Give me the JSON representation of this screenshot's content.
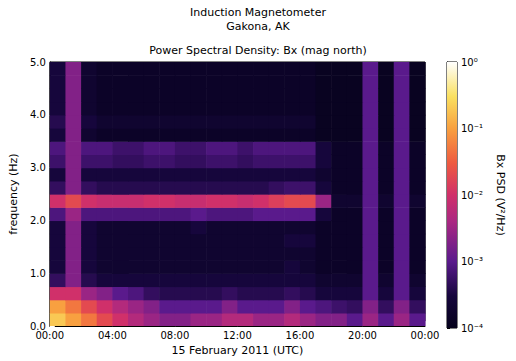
{
  "chart_data": {
    "type": "heatmap",
    "title": "Induction Magnetometer",
    "subtitle": [
      "Gakona, AK",
      "Power Spectral Density: Bx (mag north)"
    ],
    "x_label": "15 February 2011 (UTC)",
    "y_label": "frequency (Hz)",
    "xlim": [
      0,
      24
    ],
    "xticks": [
      {
        "value": 0,
        "label": "00:00"
      },
      {
        "value": 4,
        "label": "04:00"
      },
      {
        "value": 8,
        "label": "08:00"
      },
      {
        "value": 12,
        "label": "12:00"
      },
      {
        "value": 16,
        "label": "16:00"
      },
      {
        "value": 20,
        "label": "20:00"
      },
      {
        "value": 24,
        "label": "00:00"
      }
    ],
    "ylim": [
      0,
      5
    ],
    "yticks": [
      {
        "value": 0,
        "label": "0.0"
      },
      {
        "value": 1,
        "label": "1.0"
      },
      {
        "value": 2,
        "label": "2.0"
      },
      {
        "value": 3,
        "label": "3.0"
      },
      {
        "value": 4,
        "label": "4.0"
      },
      {
        "value": 5,
        "label": "5.0"
      }
    ],
    "grid": false,
    "x_bins": [
      0,
      1,
      2,
      3,
      4,
      5,
      6,
      7,
      8,
      9,
      10,
      11,
      12,
      13,
      14,
      15,
      16,
      17,
      18,
      19,
      20,
      21,
      22,
      23,
      24
    ],
    "y_bins": [
      0,
      0.25,
      0.5,
      0.75,
      1,
      1.25,
      1.5,
      1.75,
      2,
      2.25,
      2.5,
      2.75,
      3,
      3.25,
      3.5,
      3.75,
      4,
      4.25,
      4.5,
      4.75,
      5
    ],
    "cells": [
      [
        0.2,
        0.1,
        0.05,
        0.02,
        0.01,
        0.005,
        0.003,
        0.002,
        0.002,
        0.003,
        0.003,
        0.005,
        0.005,
        0.003,
        0.003,
        0.005,
        0.003,
        0.002,
        0.002,
        0.001,
        0.003,
        0.001,
        0.003,
        0.001
      ],
      [
        0.1,
        0.05,
        0.02,
        0.01,
        0.005,
        0.003,
        0.002,
        0.001,
        0.001,
        0.001,
        0.001,
        0.002,
        0.001,
        0.001,
        0.001,
        0.002,
        0.001,
        0.0008,
        0.0006,
        0.0005,
        0.002,
        0.0005,
        0.002,
        0.0005
      ],
      [
        0.01,
        0.01,
        0.003,
        0.002,
        0.001,
        0.0008,
        0.0005,
        0.0004,
        0.0004,
        0.0004,
        0.0004,
        0.0005,
        0.0004,
        0.0004,
        0.0004,
        0.0005,
        0.0004,
        0.0003,
        0.0003,
        0.0003,
        0.001,
        0.0003,
        0.001,
        0.0003
      ],
      [
        0.0005,
        0.002,
        0.0004,
        0.0003,
        0.0003,
        0.0003,
        0.0003,
        0.0003,
        0.0003,
        0.0003,
        0.0003,
        0.0003,
        0.0003,
        0.0003,
        0.0003,
        0.0003,
        0.0003,
        0.0002,
        0.0002,
        0.0002,
        0.001,
        0.0002,
        0.001,
        0.0002
      ],
      [
        0.0003,
        0.002,
        0.0003,
        0.0002,
        0.0002,
        0.0002,
        0.0002,
        0.0002,
        0.0002,
        0.0002,
        0.0002,
        0.0002,
        0.0002,
        0.0002,
        0.0002,
        0.0003,
        0.0002,
        0.00015,
        0.00015,
        0.00015,
        0.001,
        0.00015,
        0.001,
        0.00015
      ],
      [
        0.0003,
        0.002,
        0.0003,
        0.0002,
        0.0002,
        0.0002,
        0.0002,
        0.0002,
        0.0002,
        0.0002,
        0.0002,
        0.0002,
        0.0002,
        0.0002,
        0.0002,
        0.0002,
        0.0002,
        0.00015,
        0.00015,
        0.00015,
        0.001,
        0.00015,
        0.001,
        0.00015
      ],
      [
        0.0003,
        0.002,
        0.0003,
        0.0002,
        0.0002,
        0.0002,
        0.0002,
        0.0002,
        0.0002,
        0.0002,
        0.0002,
        0.0002,
        0.0002,
        0.0002,
        0.0002,
        0.0003,
        0.0003,
        0.00015,
        0.00015,
        0.00015,
        0.001,
        0.00015,
        0.001,
        0.00015
      ],
      [
        0.0003,
        0.002,
        0.0003,
        0.0002,
        0.0002,
        0.0002,
        0.0002,
        0.0002,
        0.0002,
        0.0003,
        0.0002,
        0.0002,
        0.0002,
        0.0002,
        0.0002,
        0.0002,
        0.0002,
        0.00015,
        0.00015,
        0.00015,
        0.001,
        0.00015,
        0.001,
        0.00015
      ],
      [
        0.0008,
        0.003,
        0.0008,
        0.0008,
        0.0008,
        0.0008,
        0.0008,
        0.0008,
        0.0008,
        0.001,
        0.0008,
        0.0008,
        0.0008,
        0.001,
        0.001,
        0.001,
        0.001,
        0.0003,
        0.00015,
        0.00015,
        0.001,
        0.00015,
        0.001,
        0.00015
      ],
      [
        0.01,
        0.02,
        0.01,
        0.008,
        0.008,
        0.008,
        0.01,
        0.01,
        0.008,
        0.008,
        0.01,
        0.01,
        0.008,
        0.01,
        0.015,
        0.02,
        0.02,
        0.003,
        0.0002,
        0.0002,
        0.001,
        0.0002,
        0.001,
        0.0002
      ],
      [
        0.0005,
        0.002,
        0.0005,
        0.0004,
        0.0004,
        0.0004,
        0.0004,
        0.0004,
        0.0004,
        0.0004,
        0.0004,
        0.0004,
        0.0004,
        0.0004,
        0.0005,
        0.0006,
        0.0006,
        0.0003,
        0.00015,
        0.00015,
        0.001,
        0.00015,
        0.001,
        0.00015
      ],
      [
        0.0003,
        0.002,
        0.0003,
        0.0003,
        0.0003,
        0.0003,
        0.0003,
        0.0003,
        0.0003,
        0.0003,
        0.0003,
        0.0003,
        0.0003,
        0.0003,
        0.0003,
        0.0003,
        0.0003,
        0.0002,
        0.00015,
        0.00015,
        0.001,
        0.00015,
        0.001,
        0.00015
      ],
      [
        0.0006,
        0.002,
        0.0006,
        0.0006,
        0.0005,
        0.0005,
        0.0006,
        0.0006,
        0.0005,
        0.0005,
        0.0006,
        0.0006,
        0.0005,
        0.0006,
        0.0006,
        0.0006,
        0.0006,
        0.0003,
        0.00015,
        0.00015,
        0.001,
        0.00015,
        0.001,
        0.00015
      ],
      [
        0.0008,
        0.002,
        0.0008,
        0.0008,
        0.0006,
        0.0006,
        0.0008,
        0.0008,
        0.0006,
        0.0006,
        0.0008,
        0.0008,
        0.0006,
        0.0008,
        0.0008,
        0.0008,
        0.0008,
        0.0003,
        0.00015,
        0.00015,
        0.001,
        0.00015,
        0.001,
        0.00015
      ],
      [
        0.0003,
        0.002,
        0.0002,
        0.00015,
        0.00015,
        0.00015,
        0.00015,
        0.00015,
        0.00015,
        0.00015,
        0.00015,
        0.00015,
        0.00015,
        0.00015,
        0.00015,
        0.00015,
        0.00015,
        0.00012,
        0.00012,
        0.00012,
        0.001,
        0.00012,
        0.001,
        0.00012
      ],
      [
        0.0004,
        0.002,
        0.0003,
        0.0002,
        0.0002,
        0.0002,
        0.0002,
        0.0002,
        0.0002,
        0.0002,
        0.0002,
        0.0002,
        0.0002,
        0.0002,
        0.0002,
        0.0002,
        0.0002,
        0.00012,
        0.00012,
        0.00012,
        0.001,
        0.00012,
        0.001,
        0.00012
      ],
      [
        0.0003,
        0.002,
        0.0002,
        0.00015,
        0.00015,
        0.00015,
        0.00015,
        0.00015,
        0.00015,
        0.00015,
        0.00015,
        0.00015,
        0.00015,
        0.00015,
        0.00015,
        0.00015,
        0.00015,
        0.00012,
        0.00012,
        0.00012,
        0.001,
        0.00012,
        0.001,
        0.00012
      ],
      [
        0.0003,
        0.002,
        0.0002,
        0.00015,
        0.00015,
        0.00015,
        0.00015,
        0.00015,
        0.00015,
        0.00015,
        0.00015,
        0.00015,
        0.00015,
        0.00015,
        0.00015,
        0.00015,
        0.00015,
        0.00012,
        0.00012,
        0.00012,
        0.001,
        0.00012,
        0.001,
        0.00012
      ],
      [
        0.0003,
        0.002,
        0.0002,
        0.00015,
        0.00015,
        0.00015,
        0.00015,
        0.00015,
        0.00015,
        0.00015,
        0.00015,
        0.00015,
        0.00015,
        0.00015,
        0.00015,
        0.00015,
        0.00015,
        0.00012,
        0.00012,
        0.00012,
        0.001,
        0.00012,
        0.001,
        0.00012
      ],
      [
        0.0003,
        0.002,
        0.0002,
        0.00015,
        0.00015,
        0.00015,
        0.00015,
        0.00015,
        0.00015,
        0.00015,
        0.00015,
        0.00015,
        0.00015,
        0.00015,
        0.00015,
        0.00015,
        0.00015,
        0.00012,
        0.00012,
        0.00012,
        0.001,
        0.00012,
        0.001,
        0.00012
      ]
    ],
    "colorbar": {
      "label": "Bx PSD (V²/Hz)",
      "range": [
        0.0001,
        1
      ],
      "ticks": [
        {
          "value": 0.0001,
          "label": "10⁻⁴"
        },
        {
          "value": 0.001,
          "label": "10⁻³"
        },
        {
          "value": 0.01,
          "label": "10⁻²"
        },
        {
          "value": 0.1,
          "label": "10⁻¹"
        },
        {
          "value": 1,
          "label": "10⁰"
        }
      ],
      "log": true
    }
  }
}
